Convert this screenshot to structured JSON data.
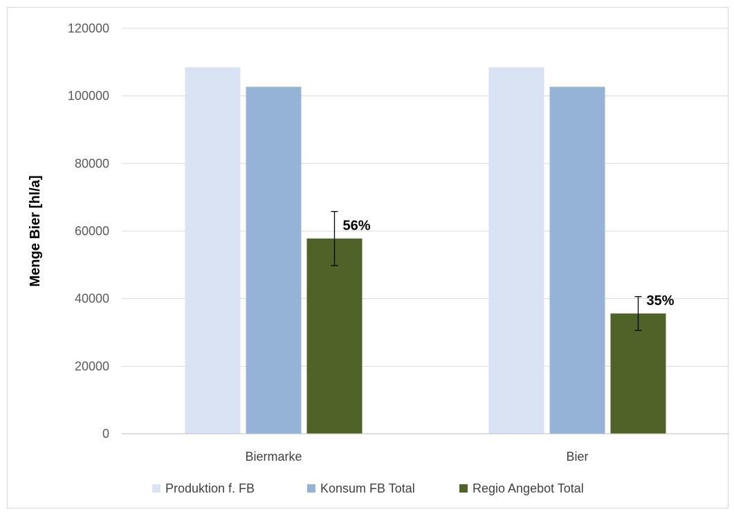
{
  "chart_data": {
    "type": "bar",
    "title": "",
    "xlabel": "",
    "ylabel": "Menge Bier [hl/a]",
    "ylim": [
      0,
      120000
    ],
    "yticks": [
      0,
      20000,
      40000,
      60000,
      80000,
      100000,
      120000
    ],
    "grid": true,
    "legend_position": "bottom",
    "categories": [
      "Biermarke",
      "Bier"
    ],
    "series": [
      {
        "name": "Produktion f. FB",
        "color": "#dae3f3",
        "values": [
          108500,
          108500
        ]
      },
      {
        "name": "Konsum FB Total",
        "color": "#95b3d7",
        "values": [
          102700,
          102700
        ]
      },
      {
        "name": "Regio Angebot Total",
        "color": "#4f6228",
        "values": [
          57800,
          35600
        ],
        "error": [
          8000,
          5000
        ],
        "data_labels": [
          "56%",
          "35%"
        ]
      }
    ]
  }
}
